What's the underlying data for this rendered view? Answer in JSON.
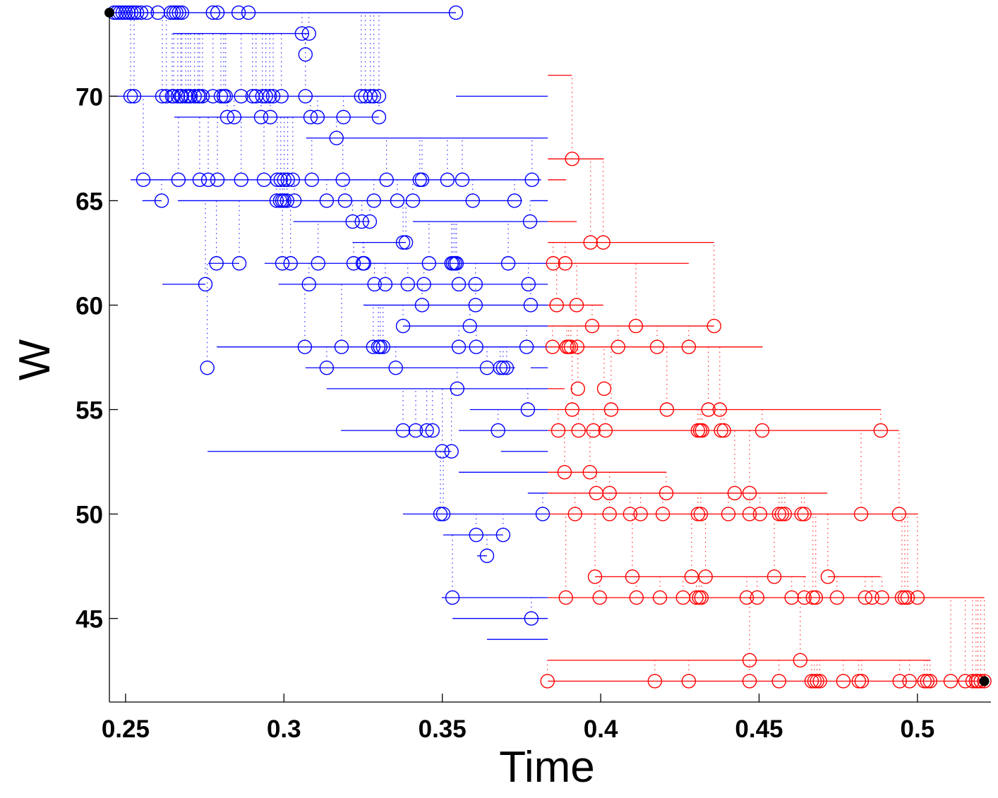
{
  "chart_data": {
    "type": "scatter",
    "xlabel": "Time",
    "ylabel": "W",
    "xlim": [
      0.2449,
      0.5232
    ],
    "ylim": [
      41.0,
      74.1
    ],
    "xticks": [
      "0.25",
      "0.3",
      "0.35",
      "0.4",
      "0.45",
      "0.5"
    ],
    "yticks": [
      "45",
      "50",
      "55",
      "60",
      "65",
      "70"
    ],
    "grid": false,
    "legend": "none",
    "markers": [
      {
        "t": 0.2449,
        "W": 74,
        "color": "#000000"
      },
      {
        "t": 0.5211,
        "W": 42,
        "color": "#000000"
      }
    ],
    "series": [
      {
        "color": "#0000ff",
        "rows": [
          {
            "W": 74,
            "segments": [
              [
                0.2449,
                0.3543
              ]
            ],
            "events": [
              0.2464,
              0.2473,
              0.2482,
              0.2491,
              0.25,
              0.2509,
              0.2518,
              0.2527,
              0.2536,
              0.2549,
              0.2567,
              0.2602,
              0.2643,
              0.2652,
              0.266,
              0.2669,
              0.2678,
              0.2776,
              0.279,
              0.2857,
              0.2888,
              0.3543
            ]
          },
          {
            "W": 73,
            "segments": [
              [
                0.2649,
                0.3079
              ]
            ],
            "events": [
              0.3057,
              0.3079
            ]
          },
          {
            "W": 72,
            "segments": [],
            "events": [
              0.3068
            ]
          },
          {
            "W": 70,
            "segments": [
              [
                0.2449,
                0.33
              ],
              [
                0.3543,
                0.3833
              ]
            ],
            "events": [
              0.2516,
              0.2527,
              0.2616,
              0.2629,
              0.2647,
              0.2652,
              0.2665,
              0.2674,
              0.2678,
              0.269,
              0.2698,
              0.2705,
              0.2718,
              0.2729,
              0.2734,
              0.2743,
              0.2776,
              0.2801,
              0.281,
              0.2816,
              0.2865,
              0.2901,
              0.2912,
              0.2932,
              0.2943,
              0.2955,
              0.2966,
              0.2992,
              0.3068,
              0.3244,
              0.3257,
              0.3273,
              0.3284,
              0.33
            ]
          },
          {
            "W": 69,
            "segments": [
              [
                0.2654,
                0.33
              ]
            ],
            "events": [
              0.2821,
              0.2843,
              0.2928,
              0.2957,
              0.3084,
              0.3106,
              0.3188,
              0.33
            ]
          },
          {
            "W": 68,
            "segments": [
              [
                0.307,
                0.3833
              ]
            ],
            "events": [
              0.3166
            ]
          },
          {
            "W": 66,
            "segments": [
              [
                0.2516,
                0.3812
              ]
            ],
            "events": [
              0.2556,
              0.2667,
              0.2734,
              0.2761,
              0.279,
              0.2865,
              0.2937,
              0.2979,
              0.299,
              0.3001,
              0.3012,
              0.3028,
              0.3088,
              0.3186,
              0.3324,
              0.3429,
              0.3436,
              0.3516,
              0.3563,
              0.3783
            ]
          },
          {
            "W": 65,
            "segments": [
              [
                0.2553,
                0.2614
              ],
              [
                0.2665,
                0.3752
              ],
              [
                0.3779,
                0.3833
              ]
            ],
            "events": [
              0.2614,
              0.2977,
              0.2988,
              0.2995,
              0.3001,
              0.301,
              0.3033,
              0.3135,
              0.3193,
              0.3284,
              0.3358,
              0.3407,
              0.3596,
              0.3728
            ]
          },
          {
            "W": 64,
            "segments": [
              [
                0.303,
                0.3271
              ],
              [
                0.3407,
                0.3833
              ]
            ],
            "events": [
              0.3217,
              0.3246,
              0.3271,
              0.3777
            ]
          },
          {
            "W": 63,
            "segments": [
              [
                0.3217,
                0.3385
              ]
            ],
            "events": [
              0.3376,
              0.3385
            ]
          },
          {
            "W": 62,
            "segments": [
              [
                0.2761,
                0.2859
              ],
              [
                0.2939,
                0.3833
              ]
            ],
            "events": [
              0.2787,
              0.2859,
              0.2995,
              0.3021,
              0.3108,
              0.322,
              0.3249,
              0.3253,
              0.3458,
              0.3529,
              0.3534,
              0.354,
              0.3545,
              0.3708
            ]
          },
          {
            "W": 61,
            "segments": [
              [
                0.2616,
                0.2752
              ],
              [
                0.2983,
                0.3833
              ]
            ],
            "events": [
              0.2752,
              0.3079,
              0.3286,
              0.332,
              0.3391,
              0.3442,
              0.3552,
              0.3605,
              0.3772
            ]
          },
          {
            "W": 60,
            "segments": [
              [
                0.3251,
                0.3833
              ]
            ],
            "events": [
              0.3436,
              0.3605,
              0.3779
            ]
          },
          {
            "W": 59,
            "segments": [
              [
                0.3376,
                0.3833
              ]
            ],
            "events": [
              0.3376,
              0.3587
            ]
          },
          {
            "W": 58,
            "segments": [
              [
                0.2788,
                0.3833
              ]
            ],
            "events": [
              0.3066,
              0.3182,
              0.3282,
              0.3298,
              0.3304,
              0.3313,
              0.3552,
              0.3607,
              0.3766
            ]
          },
          {
            "W": 57,
            "segments": [
              [
                0.3068,
                0.373
              ],
              [
                0.3779,
                0.3833
              ]
            ],
            "events": [
              0.2758,
              0.3135,
              0.3353,
              0.3641,
              0.3683,
              0.3692,
              0.3703
            ]
          },
          {
            "W": 56,
            "segments": [
              [
                0.3135,
                0.3833
              ]
            ],
            "events": [
              0.3547
            ]
          },
          {
            "W": 55,
            "segments": [
              [
                0.3587,
                0.3833
              ]
            ],
            "events": [
              0.377
            ]
          },
          {
            "W": 54,
            "segments": [
              [
                0.318,
                0.3469
              ],
              [
                0.3552,
                0.3833
              ]
            ],
            "events": [
              0.3376,
              0.3416,
              0.3451,
              0.3469,
              0.3676
            ]
          },
          {
            "W": 53,
            "segments": [
              [
                0.2759,
                0.3529
              ],
              [
                0.3685,
                0.3833
              ]
            ],
            "events": [
              0.35,
              0.3529
            ]
          },
          {
            "W": 52,
            "segments": [
              [
                0.3552,
                0.3833
              ]
            ],
            "events": []
          },
          {
            "W": 51,
            "segments": [
              [
                0.377,
                0.3833
              ]
            ],
            "events": []
          },
          {
            "W": 50,
            "segments": [
              [
                0.3376,
                0.3833
              ]
            ],
            "events": [
              0.3494,
              0.3503,
              0.3817
            ]
          },
          {
            "W": 49,
            "segments": [
              [
                0.3503,
                0.3692
              ]
            ],
            "events": [
              0.3607,
              0.3692
            ]
          },
          {
            "W": 48,
            "segments": [
              [
                0.361,
                0.3641
              ]
            ],
            "events": [
              0.3641
            ]
          },
          {
            "W": 46,
            "segments": [
              [
                0.3498,
                0.3833
              ]
            ],
            "events": [
              0.3532
            ]
          },
          {
            "W": 45,
            "segments": [
              [
                0.3532,
                0.3833
              ]
            ],
            "events": [
              0.3781
            ]
          },
          {
            "W": 44,
            "segments": [
              [
                0.3641,
                0.3833
              ]
            ],
            "events": []
          }
        ]
      },
      {
        "color": "#ff0000",
        "rows": [
          {
            "W": 71,
            "segments": [
              [
                0.3833,
                0.3909
              ]
            ],
            "events": []
          },
          {
            "W": 67,
            "segments": [
              [
                0.3833,
                0.401
              ]
            ],
            "events": [
              0.391
            ]
          },
          {
            "W": 66,
            "segments": [
              [
                0.3833,
                0.3891
              ]
            ],
            "events": []
          },
          {
            "W": 64,
            "segments": [
              [
                0.3833,
                0.3924
              ]
            ],
            "events": []
          },
          {
            "W": 63,
            "segments": [
              [
                0.3833,
                0.4358
              ]
            ],
            "events": [
              0.3968,
              0.4008
            ]
          },
          {
            "W": 62,
            "segments": [
              [
                0.3833,
                0.4278
              ]
            ],
            "events": [
              0.385,
              0.3888
            ]
          },
          {
            "W": 60,
            "segments": [
              [
                0.3833,
                0.4008
              ]
            ],
            "events": [
              0.3861,
              0.3924
            ]
          },
          {
            "W": 59,
            "segments": [
              [
                0.3833,
                0.4358
              ]
            ],
            "events": [
              0.3973,
              0.4111,
              0.4358
            ]
          },
          {
            "W": 58,
            "segments": [
              [
                0.3833,
                0.4511
              ]
            ],
            "events": [
              0.3848,
              0.3893,
              0.3899,
              0.3906,
              0.3926,
              0.4055,
              0.4178,
              0.4278
            ]
          },
          {
            "W": 56,
            "segments": [
              [
                0.3833,
                0.3886
              ]
            ],
            "events": [
              0.3928,
              0.4011
            ]
          },
          {
            "W": 55,
            "segments": [
              [
                0.3833,
                0.4884
              ]
            ],
            "events": [
              0.391,
              0.4033,
              0.4209,
              0.434,
              0.4376
            ]
          },
          {
            "W": 54,
            "segments": [
              [
                0.3833,
                0.4942
              ]
            ],
            "events": [
              0.3866,
              0.393,
              0.3977,
              0.4015,
              0.4307,
              0.4314,
              0.432,
              0.438,
              0.4389,
              0.451,
              0.4884
            ]
          },
          {
            "W": 52,
            "segments": [
              [
                0.3833,
                0.4207
              ]
            ],
            "events": [
              0.3886,
              0.3966
            ]
          },
          {
            "W": 51,
            "segments": [
              [
                0.3833,
                0.4715
              ]
            ],
            "events": [
              0.3986,
              0.4028,
              0.4207,
              0.4423,
              0.447
            ]
          },
          {
            "W": 50,
            "segments": [
              [
                0.3833,
                0.5002
              ]
            ],
            "events": [
              0.3919,
              0.4028,
              0.4093,
              0.4126,
              0.4196,
              0.4307,
              0.4316,
              0.4403,
              0.447,
              0.4503,
              0.4563,
              0.4572,
              0.4581,
              0.4634,
              0.4643,
              0.4822,
              0.4942
            ]
          },
          {
            "W": 47,
            "segments": [
              [
                0.3982,
                0.4648
              ],
              [
                0.4717,
                0.4884
              ]
            ],
            "events": [
              0.3982,
              0.41,
              0.4287,
              0.4331,
              0.4548,
              0.4717
            ]
          },
          {
            "W": 46,
            "segments": [
              [
                0.3833,
                0.5211
              ]
            ],
            "events": [
              0.389,
              0.3997,
              0.4113,
              0.4187,
              0.426,
              0.4302,
              0.4311,
              0.4318,
              0.4461,
              0.4494,
              0.4603,
              0.4643,
              0.467,
              0.4679,
              0.4746,
              0.4835,
              0.4857,
              0.4888,
              0.4951,
              0.496,
              0.4969,
              0.5
            ]
          },
          {
            "W": 43,
            "segments": [
              [
                0.3833,
                0.504
              ]
            ],
            "events": [
              0.447,
              0.463
            ]
          },
          {
            "W": 42,
            "segments": [
              [
                0.3833,
                0.5211
              ]
            ],
            "events": [
              0.3832,
              0.4171,
              0.4278,
              0.447,
              0.4563,
              0.4666,
              0.4675,
              0.4683,
              0.4692,
              0.4766,
              0.4815,
              0.4824,
              0.4944,
              0.4975,
              0.5022,
              0.5031,
              0.504,
              0.5105,
              0.5151,
              0.5174,
              0.5185,
              0.5191,
              0.52,
              0.5211
            ]
          }
        ]
      }
    ]
  }
}
